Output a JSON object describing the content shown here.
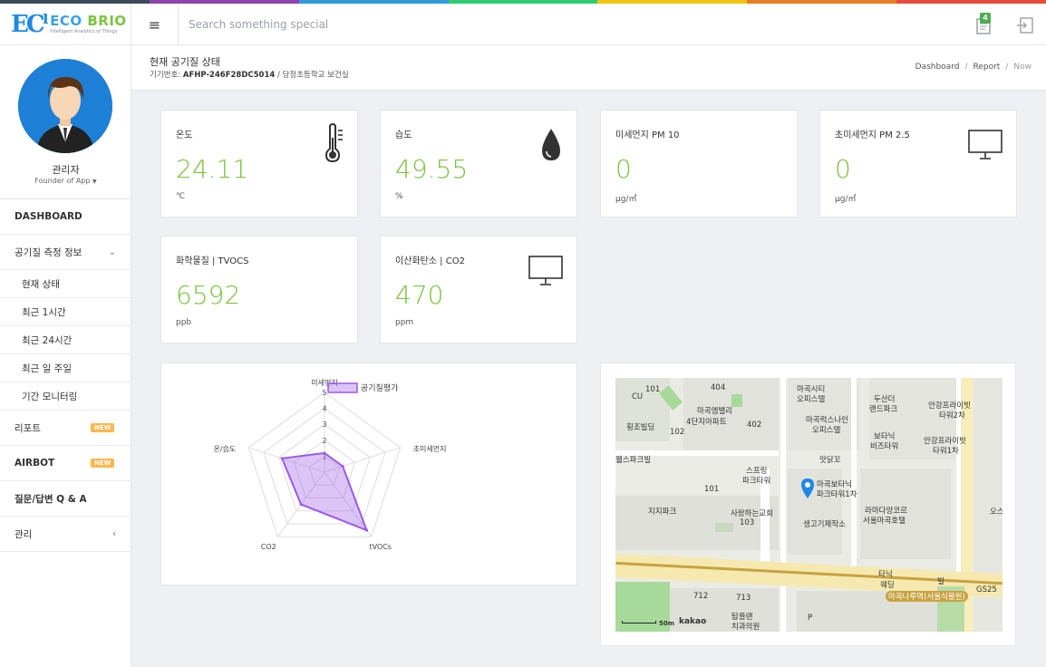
{
  "strip_colors": [
    "#3b4b5c",
    "#8e44ad",
    "#3498db",
    "#2ecc71",
    "#f1c40f",
    "#e67e22",
    "#e74c3c"
  ],
  "brand": {
    "name_a": "ECO",
    "name_b": "BRIO",
    "tagline": "Intelligent Analytics of Things",
    "logo_icon": "eco-brio-logo",
    "primary": "#3aa0e8",
    "accent": "#7cc341"
  },
  "header": {
    "menu_icon": "hamburger-icon",
    "search_placeholder": "Search something special",
    "notification_count": "4",
    "notification_icon": "notification-icon",
    "logout_icon": "logout-icon"
  },
  "profile": {
    "name": "관리자",
    "role": "Founder of App",
    "role_caret": "▼"
  },
  "sidebar": {
    "dashboard": "DASHBOARD",
    "air_info": "공기질 측정 정보",
    "air_caret": "⌄",
    "sub_items": [
      "현재 상태",
      "최근 1시간",
      "최근 24시간",
      "최근 일 주일",
      "기간 모니터링"
    ],
    "report": "리포트",
    "report_badge": "NEW",
    "airbot": "AIRBOT",
    "airbot_badge": "NEW",
    "qa": "질문/답변 Q & A",
    "manage": "관리",
    "manage_caret": "‹"
  },
  "page": {
    "title": "현재 공기질 상태",
    "device_prefix": "기기번호: ",
    "device_id": "AFHP-246F28DC5014",
    "device_location": " / 당정초등학교 보건실"
  },
  "breadcrumb": {
    "a": "Dashboard",
    "sep": "/",
    "b": "Report",
    "c": "Now"
  },
  "cards": [
    {
      "label": "온도",
      "value": "24.11",
      "unit": "℃",
      "icon": "thermometer-icon"
    },
    {
      "label": "습도",
      "value": "49.55",
      "unit": "%",
      "icon": "water-drop-icon"
    },
    {
      "label": "미세먼지 PM 10",
      "value": "0",
      "unit": "μg/㎥",
      "icon": ""
    },
    {
      "label": "초미세먼지 PM 2.5",
      "value": "0",
      "unit": "μg/㎥",
      "icon": "monitor-icon"
    },
    {
      "label": "화학물질 | TVOCS",
      "value": "6592",
      "unit": "ppb",
      "icon": ""
    },
    {
      "label": "이산화탄소 | CO2",
      "value": "470",
      "unit": "ppm",
      "icon": "monitor-icon"
    }
  ],
  "chart_data": {
    "type": "radar",
    "categories": [
      "미세먼지",
      "초미세먼지",
      "tVOCs",
      "CO2",
      "온/습도"
    ],
    "series": [
      {
        "name": "공기질평가",
        "values": [
          1.2,
          1.2,
          4.5,
          2.5,
          2.8
        ]
      }
    ],
    "ticks": [
      "1",
      "2",
      "3",
      "4",
      "5"
    ],
    "rmax": 5,
    "colors": {
      "stroke": "#9b59e6",
      "fill": "rgba(155,89,230,0.35)"
    },
    "legend_position": "top"
  },
  "map": {
    "labels": [
      "101",
      "CU",
      "404",
      "마곡엠밸리",
      "4단지아파트",
      "402",
      "마곡시티",
      "오피스텔",
      "두산더",
      "랜드파크",
      "안강프라이빗",
      "타워2차",
      "102",
      "마곡럭스나인",
      "오피스텔",
      "보타닉",
      "비즈타워",
      "안강프라이빗",
      "타워1차",
      "횡조빌딩",
      "웰스파크빌",
      "맛닭꼬",
      "스프링",
      "파크타워",
      "마곡보타닉",
      "파크타워1차",
      "101",
      "지지파크",
      "사랑하는교회",
      "103",
      "생고기제작소",
      "라마다앙코르",
      "서울마곡호텔",
      "오스",
      "타닉",
      "웨딩",
      "빌",
      "GS25",
      "마곡나루역(서울식물원)",
      "712",
      "713",
      "탑플랜",
      "치과의원",
      "P",
      "50m",
      "kakao"
    ],
    "pin_icon": "map-pin-icon"
  }
}
